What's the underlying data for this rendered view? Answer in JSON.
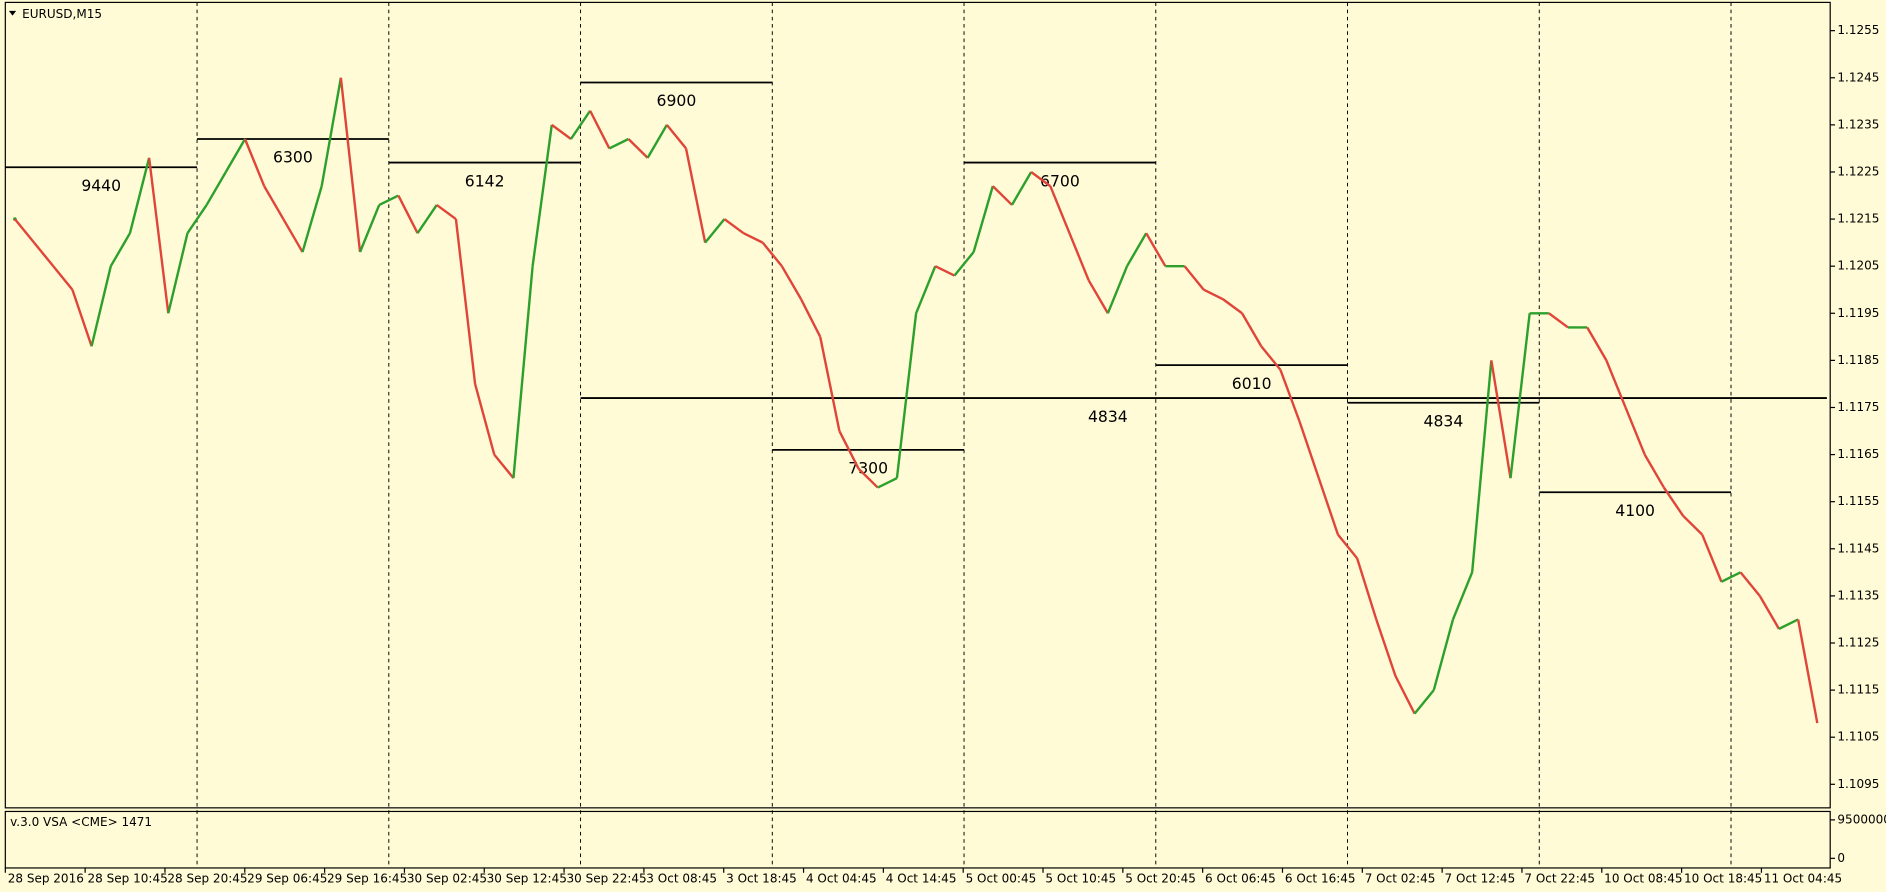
{
  "chart_data": {
    "type": "line",
    "title": "EURUSD,M15",
    "indicator": "v.3.0 VSA <CME> 1471",
    "up_color": "#2ca02c",
    "down_color": "#e0453a",
    "values": [
      1.1215,
      1.121,
      1.1205,
      1.12,
      1.1188,
      1.1205,
      1.1212,
      1.1228,
      1.1195,
      1.1212,
      1.1218,
      1.1225,
      1.1232,
      1.1222,
      1.1215,
      1.1208,
      1.1222,
      1.1245,
      1.1208,
      1.1218,
      1.122,
      1.1212,
      1.1218,
      1.1215,
      1.118,
      1.1165,
      1.116,
      1.1205,
      1.1235,
      1.1232,
      1.1238,
      1.123,
      1.1232,
      1.1228,
      1.1235,
      1.123,
      1.121,
      1.1215,
      1.1212,
      1.121,
      1.1205,
      1.1198,
      1.119,
      1.117,
      1.1162,
      1.1158,
      1.116,
      1.1195,
      1.1205,
      1.1203,
      1.1208,
      1.1222,
      1.1218,
      1.1225,
      1.1222,
      1.1212,
      1.1202,
      1.1195,
      1.1205,
      1.1212,
      1.1205,
      1.1205,
      1.12,
      1.1198,
      1.1195,
      1.1188,
      1.1183,
      1.1172,
      1.116,
      1.1148,
      1.1143,
      1.113,
      1.1118,
      1.111,
      1.1115,
      1.113,
      1.114,
      1.1185,
      1.116,
      1.1195,
      1.1195,
      1.1192,
      1.1192,
      1.1185,
      1.1175,
      1.1165,
      1.1158,
      1.1152,
      1.1148,
      1.1138,
      1.114,
      1.1135,
      1.1128,
      1.113,
      1.1108
    ],
    "ylim": [
      1.109,
      1.1261
    ],
    "yticks": [
      1.1255,
      1.1245,
      1.1235,
      1.1225,
      1.1215,
      1.1205,
      1.1195,
      1.1185,
      1.1175,
      1.1165,
      1.1155,
      1.1145,
      1.1135,
      1.1125,
      1.1115,
      1.1105,
      1.1095
    ],
    "sub_yticks": [
      9500000,
      0
    ],
    "x_labels": [
      "28 Sep 2016",
      "28 Sep 10:45",
      "28 Sep 20:45",
      "29 Sep 06:45",
      "29 Sep 16:45",
      "30 Sep 02:45",
      "30 Sep 12:45",
      "30 Sep 22:45",
      "3 Oct 08:45",
      "3 Oct 18:45",
      "4 Oct 04:45",
      "4 Oct 14:45",
      "5 Oct 00:45",
      "5 Oct 10:45",
      "5 Oct 20:45",
      "6 Oct 06:45",
      "6 Oct 16:45",
      "7 Oct 02:45",
      "7 Oct 12:45",
      "7 Oct 22:45",
      "10 Oct 08:45",
      "10 Oct 18:45",
      "11 Oct 04:45"
    ],
    "levels": [
      {
        "value": 9440,
        "price": 1.1226,
        "from": 0,
        "to": 1
      },
      {
        "value": 6300,
        "price": 1.1232,
        "from": 1,
        "to": 2
      },
      {
        "value": 6142,
        "price": 1.1227,
        "from": 2,
        "to": 3
      },
      {
        "value": 6900,
        "price": 1.1244,
        "from": 3,
        "to": 4
      },
      {
        "value": 7300,
        "price": 1.1166,
        "from": 4,
        "to": 5
      },
      {
        "value": 6700,
        "price": 1.1227,
        "from": 5,
        "to": 6
      },
      {
        "value": 6010,
        "price": 1.1184,
        "from": 6,
        "to": 7
      },
      {
        "value": 4834,
        "price": 1.1177,
        "from": 3,
        "to": 9.5
      },
      {
        "value": 4834,
        "price": 1.1176,
        "from": 7,
        "to": 8
      },
      {
        "value": 4100,
        "price": 1.1157,
        "from": 8,
        "to": 9
      }
    ]
  }
}
